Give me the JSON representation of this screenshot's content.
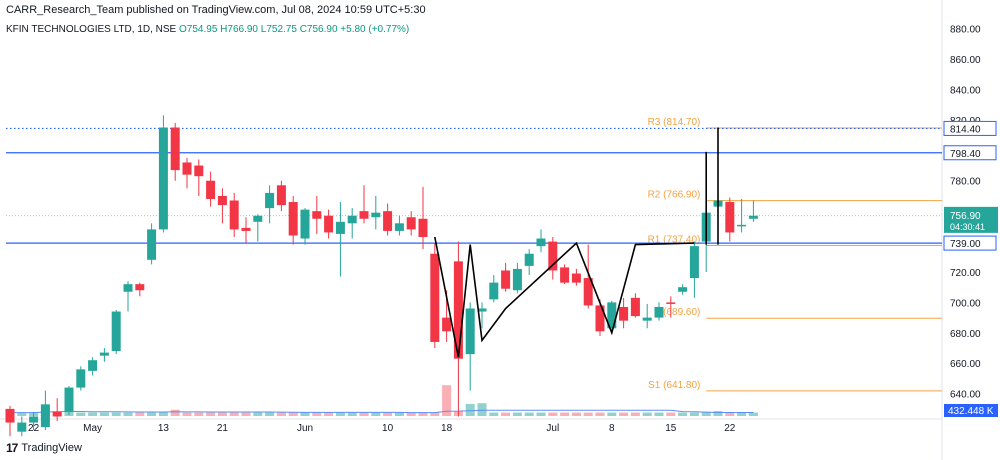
{
  "header": {
    "publisher": "CARR_Research_Team published on TradingView.com, Jul 08, 2024 10:59 UTC+5:30",
    "symbol": "KFIN TECHNOLOGIES LTD, 1D, NSE",
    "open": "O754.95",
    "high": "H766.90",
    "low": "L752.75",
    "close": "C756.90",
    "change": "+5.80 (+0.77%)"
  },
  "footer": {
    "brand": "TradingView"
  },
  "colors": {
    "up": "#26a69a",
    "down": "#f23645",
    "pivot": "#f5a243",
    "level": "#2962ff",
    "volume_ma": "#5b8ff9"
  },
  "chart_data": {
    "type": "candlestick",
    "yaxis": {
      "ticks": [
        640,
        660,
        680,
        700,
        720,
        740,
        760,
        780,
        800,
        820,
        840,
        860,
        880
      ],
      "ylim": [
        624,
        887
      ]
    },
    "xaxis": {
      "tick_labels": [
        {
          "label": "22",
          "index": 2
        },
        {
          "label": "May",
          "index": 7
        },
        {
          "label": "13",
          "index": 13
        },
        {
          "label": "21",
          "index": 18
        },
        {
          "label": "Jun",
          "index": 25
        },
        {
          "label": "10",
          "index": 32
        },
        {
          "label": "18",
          "index": 37
        },
        {
          "label": "Jul",
          "index": 46
        },
        {
          "label": "8",
          "index": 51
        },
        {
          "label": "15",
          "index": 56
        },
        {
          "label": "22",
          "index": 61
        }
      ]
    },
    "candles": [
      {
        "o": 630,
        "h": 632,
        "l": 612,
        "c": 621
      },
      {
        "o": 615,
        "h": 625,
        "l": 612,
        "c": 621
      },
      {
        "o": 621,
        "h": 628,
        "l": 616,
        "c": 625
      },
      {
        "o": 618,
        "h": 642,
        "l": 616,
        "c": 633
      },
      {
        "o": 628,
        "h": 637,
        "l": 622,
        "c": 625
      },
      {
        "o": 628,
        "h": 645,
        "l": 626,
        "c": 644
      },
      {
        "o": 644,
        "h": 658,
        "l": 642,
        "c": 656
      },
      {
        "o": 655,
        "h": 664,
        "l": 652,
        "c": 662
      },
      {
        "o": 665,
        "h": 670,
        "l": 661,
        "c": 667
      },
      {
        "o": 668,
        "h": 695,
        "l": 666,
        "c": 694
      },
      {
        "o": 707,
        "h": 714,
        "l": 694,
        "c": 712
      },
      {
        "o": 712,
        "h": 713,
        "l": 704,
        "c": 708
      },
      {
        "o": 728,
        "h": 752,
        "l": 725,
        "c": 748
      },
      {
        "o": 748,
        "h": 823,
        "l": 746,
        "c": 815
      },
      {
        "o": 815,
        "h": 818,
        "l": 780,
        "c": 787
      },
      {
        "o": 792,
        "h": 795,
        "l": 775,
        "c": 784
      },
      {
        "o": 790,
        "h": 794,
        "l": 770,
        "c": 783
      },
      {
        "o": 780,
        "h": 786,
        "l": 763,
        "c": 768
      },
      {
        "o": 770,
        "h": 775,
        "l": 752,
        "c": 764
      },
      {
        "o": 767,
        "h": 772,
        "l": 743,
        "c": 748
      },
      {
        "o": 749,
        "h": 756,
        "l": 739,
        "c": 747
      },
      {
        "o": 753,
        "h": 758,
        "l": 740,
        "c": 757
      },
      {
        "o": 762,
        "h": 777,
        "l": 752,
        "c": 772
      },
      {
        "o": 777,
        "h": 780,
        "l": 760,
        "c": 764
      },
      {
        "o": 766,
        "h": 770,
        "l": 738,
        "c": 744
      },
      {
        "o": 742,
        "h": 762,
        "l": 738,
        "c": 761
      },
      {
        "o": 760,
        "h": 770,
        "l": 745,
        "c": 755
      },
      {
        "o": 757,
        "h": 761,
        "l": 742,
        "c": 746
      },
      {
        "o": 745,
        "h": 766,
        "l": 717,
        "c": 753
      },
      {
        "o": 752,
        "h": 762,
        "l": 742,
        "c": 757
      },
      {
        "o": 760,
        "h": 777,
        "l": 752,
        "c": 755
      },
      {
        "o": 756,
        "h": 770,
        "l": 748,
        "c": 759
      },
      {
        "o": 760,
        "h": 765,
        "l": 744,
        "c": 747
      },
      {
        "o": 747,
        "h": 757,
        "l": 744,
        "c": 752
      },
      {
        "o": 756,
        "h": 760,
        "l": 744,
        "c": 748
      },
      {
        "o": 755,
        "h": 776,
        "l": 735,
        "c": 743
      },
      {
        "o": 732,
        "h": 739,
        "l": 670,
        "c": 674
      },
      {
        "o": 690,
        "h": 708,
        "l": 674,
        "c": 681
      },
      {
        "o": 727,
        "h": 740,
        "l": 625,
        "c": 663
      },
      {
        "o": 666,
        "h": 700,
        "l": 642,
        "c": 696
      },
      {
        "o": 694,
        "h": 700,
        "l": 683,
        "c": 696
      },
      {
        "o": 702,
        "h": 718,
        "l": 700,
        "c": 713
      },
      {
        "o": 721,
        "h": 726,
        "l": 707,
        "c": 709
      },
      {
        "o": 708,
        "h": 726,
        "l": 706,
        "c": 722
      },
      {
        "o": 724,
        "h": 735,
        "l": 718,
        "c": 732
      },
      {
        "o": 737,
        "h": 748,
        "l": 733,
        "c": 742
      },
      {
        "o": 740,
        "h": 743,
        "l": 715,
        "c": 721
      },
      {
        "o": 723,
        "h": 725,
        "l": 712,
        "c": 713
      },
      {
        "o": 719,
        "h": 722,
        "l": 711,
        "c": 713
      },
      {
        "o": 716,
        "h": 738,
        "l": 696,
        "c": 698
      },
      {
        "o": 698,
        "h": 702,
        "l": 678,
        "c": 681
      },
      {
        "o": 683,
        "h": 701,
        "l": 680,
        "c": 700
      },
      {
        "o": 697,
        "h": 703,
        "l": 683,
        "c": 688
      },
      {
        "o": 703,
        "h": 706,
        "l": 690,
        "c": 691
      },
      {
        "o": 688,
        "h": 699,
        "l": 683,
        "c": 690
      },
      {
        "o": 690,
        "h": 700,
        "l": 688,
        "c": 697
      },
      {
        "o": 700,
        "h": 704,
        "l": 690,
        "c": 699
      },
      {
        "o": 707,
        "h": 712,
        "l": 705,
        "c": 710
      },
      {
        "o": 716,
        "h": 740,
        "l": 703,
        "c": 737
      },
      {
        "o": 740,
        "h": 762,
        "l": 720,
        "c": 759
      },
      {
        "o": 763,
        "h": 772,
        "l": 757,
        "c": 767
      },
      {
        "o": 766,
        "h": 769,
        "l": 740,
        "c": 746
      },
      {
        "o": 750,
        "h": 768,
        "l": 746,
        "c": 751
      },
      {
        "o": 755,
        "h": 767,
        "l": 753,
        "c": 757
      }
    ],
    "volume": [
      4,
      4,
      4,
      10,
      8,
      14,
      4,
      4,
      4,
      4,
      4,
      4,
      4,
      6,
      12,
      4,
      4,
      4,
      4,
      4,
      4,
      4,
      4,
      4,
      4,
      4,
      4,
      4,
      4,
      4,
      4,
      4,
      4,
      4,
      4,
      4,
      4,
      80,
      8,
      28,
      30,
      4,
      4,
      4,
      4,
      4,
      4,
      4,
      4,
      4,
      4,
      4,
      4,
      4,
      4,
      4,
      4,
      4,
      4,
      6,
      8,
      4,
      4,
      4
    ],
    "levels": [
      {
        "name": "R3",
        "value": "814.70",
        "label": "R3 (814.70)",
        "price": 814.7,
        "style": "pivot"
      },
      {
        "name": "R2",
        "value": "766.90",
        "label": "R2 (766.90)",
        "price": 766.9,
        "style": "pivot"
      },
      {
        "name": "R1",
        "value": "737.40",
        "label": "R1 (737.40)",
        "price": 737.4,
        "style": "pivot"
      },
      {
        "name": "P",
        "value": "689.60",
        "label": "(689.60)",
        "price": 689.6,
        "style": "pivot"
      },
      {
        "name": "S1",
        "value": "641.80",
        "label": "S1 (641.80)",
        "price": 641.8,
        "style": "pivot"
      },
      {
        "label": "",
        "price": 798.4,
        "style": "level"
      },
      {
        "label": "",
        "price": 739.0,
        "style": "level"
      },
      {
        "label": "",
        "price": 814.4,
        "style": "dotted"
      }
    ],
    "price_badges": [
      {
        "label": "814.40",
        "price": 814.4,
        "color": "#2962ff",
        "type": "outline"
      },
      {
        "label": "798.40",
        "price": 798.4,
        "color": "#2962ff",
        "type": "outline"
      },
      {
        "label": "756.90",
        "sub": "04:30:41",
        "price": 756.9,
        "color": "#26a69a",
        "type": "fill"
      },
      {
        "label": "739.00",
        "price": 739.0,
        "color": "#2962ff",
        "type": "outline"
      },
      {
        "label": "432.448 K",
        "price": null,
        "color": "#2962ff",
        "type": "fill-bottom"
      }
    ],
    "pattern_path": [
      {
        "i": 36,
        "p": 743
      },
      {
        "i": 38,
        "p": 664
      },
      {
        "i": 39,
        "p": 738
      },
      {
        "i": 40,
        "p": 675
      },
      {
        "i": 42,
        "p": 696
      },
      {
        "i": 48,
        "p": 739
      },
      {
        "i": 51,
        "p": 680
      },
      {
        "i": 53,
        "p": 738
      },
      {
        "i": 58,
        "p": 739
      }
    ],
    "vertical_markers": [
      {
        "i": 59,
        "from": 738,
        "to": 799
      },
      {
        "i": 60,
        "from": 738,
        "to": 815
      }
    ]
  }
}
